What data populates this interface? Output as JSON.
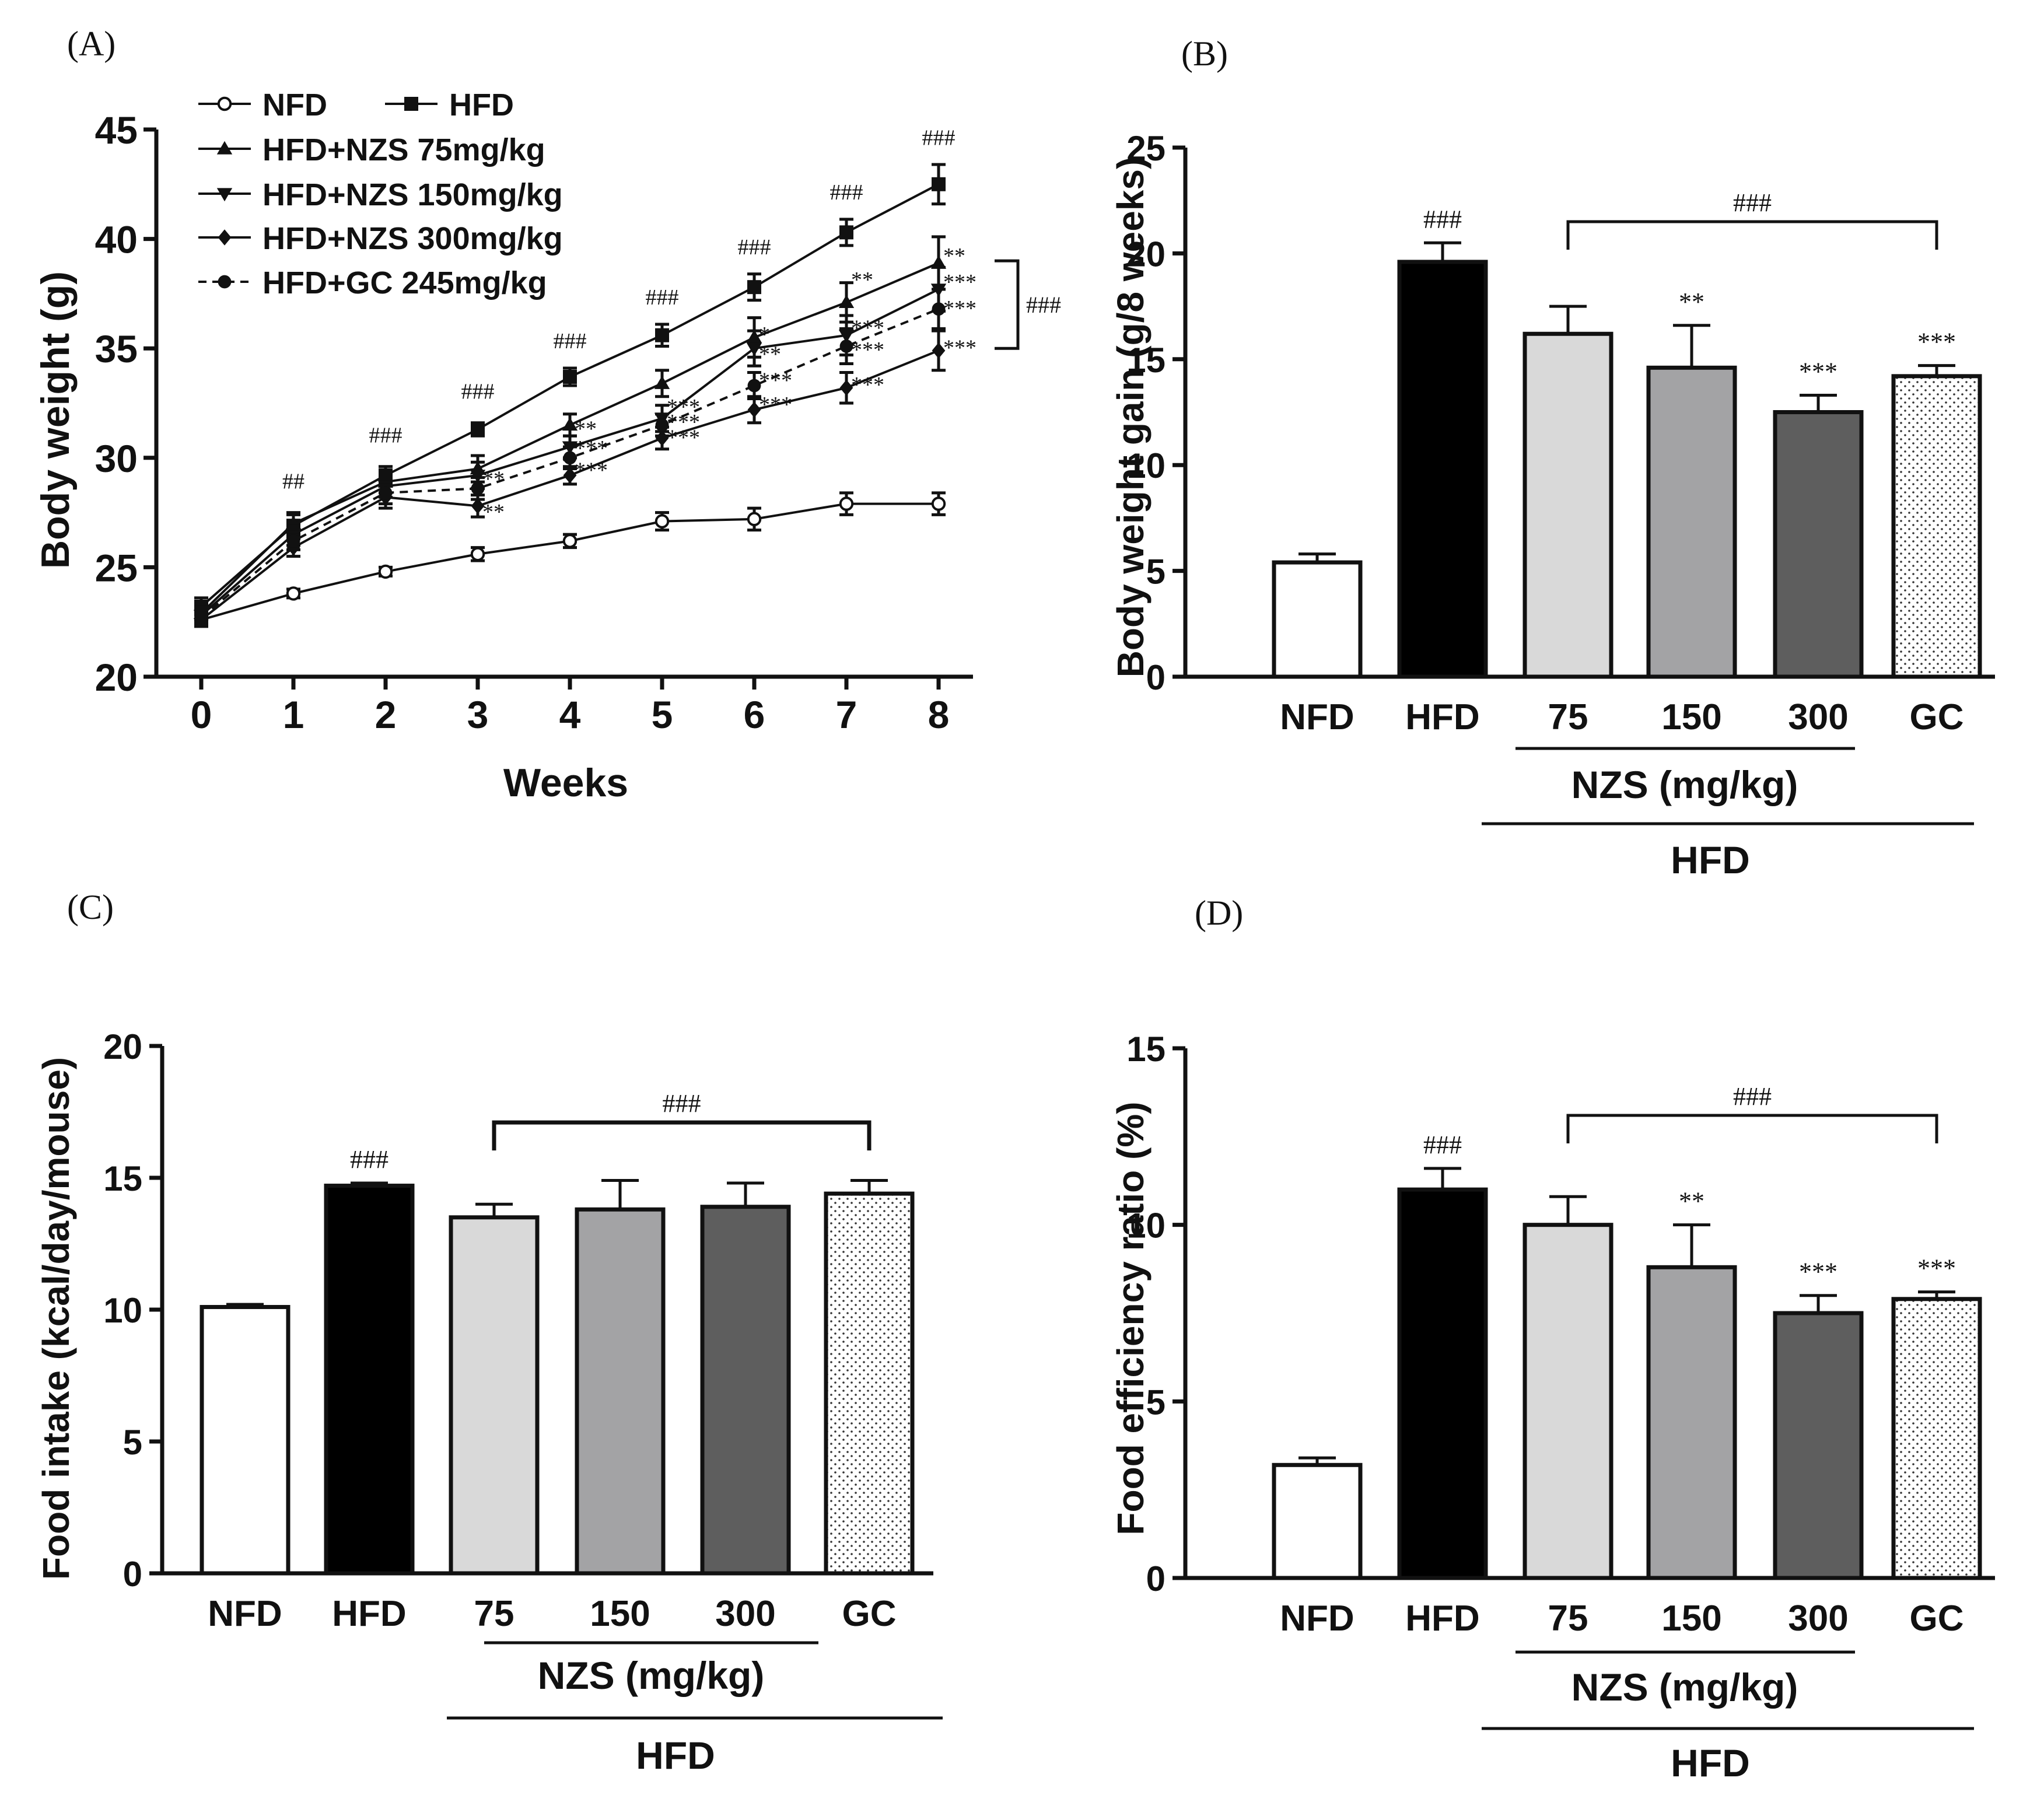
{
  "chart_data": [
    {
      "panel": "(A)",
      "type": "line",
      "xlabel": "Weeks",
      "ylabel": "Body weight (g)",
      "ylim": [
        20,
        45
      ],
      "xlim": [
        0,
        8
      ],
      "yticks": [
        "20",
        "25",
        "30",
        "35",
        "40",
        "45"
      ],
      "x": [
        0,
        1,
        2,
        3,
        4,
        5,
        6,
        7,
        8
      ],
      "series": [
        {
          "name": "NFD",
          "marker": "circle-open",
          "dash": "solid",
          "values": [
            22.6,
            23.8,
            24.8,
            25.6,
            26.2,
            27.1,
            27.2,
            27.9,
            27.9
          ],
          "errors": [
            0.3,
            0.2,
            0.2,
            0.3,
            0.3,
            0.4,
            0.5,
            0.5,
            0.5
          ]
        },
        {
          "name": "HFD",
          "marker": "square",
          "dash": "solid",
          "values": [
            23.2,
            26.9,
            29.2,
            31.3,
            33.7,
            35.6,
            37.8,
            40.3,
            42.5
          ],
          "errors": [
            0.4,
            0.5,
            0.4,
            0.3,
            0.4,
            0.5,
            0.6,
            0.6,
            0.9
          ]
        },
        {
          "name": "HFD+NZS 75mg/kg",
          "marker": "triangle-up",
          "dash": "solid",
          "values": [
            22.9,
            27.0,
            28.9,
            29.5,
            31.5,
            33.4,
            35.5,
            37.1,
            38.9
          ],
          "errors": [
            0.4,
            0.5,
            0.5,
            0.6,
            0.5,
            0.6,
            0.9,
            0.9,
            1.2
          ]
        },
        {
          "name": "HFD+NZS 150mg/kg",
          "marker": "triangle-down",
          "dash": "solid",
          "values": [
            22.8,
            26.5,
            28.7,
            29.2,
            30.5,
            31.8,
            35.0,
            35.6,
            37.7
          ],
          "errors": [
            0.4,
            0.5,
            0.5,
            0.6,
            0.5,
            0.6,
            0.8,
            0.9,
            1.0
          ]
        },
        {
          "name": "HFD+NZS 300mg/kg",
          "marker": "diamond",
          "dash": "solid",
          "values": [
            22.6,
            25.9,
            28.2,
            27.8,
            29.2,
            30.9,
            32.2,
            33.2,
            34.9
          ],
          "errors": [
            0.3,
            0.4,
            0.5,
            0.5,
            0.4,
            0.5,
            0.6,
            0.7,
            0.9
          ]
        },
        {
          "name": "HFD+GC 245mg/kg",
          "marker": "circle",
          "dash": "dashed",
          "values": [
            22.7,
            26.2,
            28.4,
            28.6,
            30.0,
            31.5,
            33.3,
            35.1,
            36.8
          ],
          "errors": [
            0.3,
            0.4,
            0.5,
            0.5,
            0.5,
            0.5,
            0.6,
            0.8,
            0.9
          ]
        }
      ],
      "annotations": [
        {
          "text": "##",
          "x": 1,
          "y": 28.6
        },
        {
          "text": "###",
          "x": 2,
          "y": 30.7
        },
        {
          "text": "###",
          "x": 3,
          "y": 32.7
        },
        {
          "text": "###",
          "x": 4,
          "y": 35.0
        },
        {
          "text": "###",
          "x": 5,
          "y": 37.0
        },
        {
          "text": "###",
          "x": 6,
          "y": 39.3
        },
        {
          "text": "###",
          "x": 7,
          "y": 41.8
        },
        {
          "text": "###",
          "x": 8,
          "y": 44.3
        },
        {
          "text": "**",
          "x": 3,
          "y": 28.7
        },
        {
          "text": "**",
          "x": 3,
          "y": 27.2
        },
        {
          "text": "**",
          "x": 4,
          "y": 31.0
        },
        {
          "text": "***",
          "x": 4,
          "y": 30.1
        },
        {
          "text": "***",
          "x": 4,
          "y": 29.1
        },
        {
          "text": "***",
          "x": 5,
          "y": 32.0
        },
        {
          "text": "***",
          "x": 5,
          "y": 31.3
        },
        {
          "text": "***",
          "x": 5,
          "y": 30.6
        },
        {
          "text": "*",
          "x": 6,
          "y": 35.3
        },
        {
          "text": "**",
          "x": 6,
          "y": 34.4
        },
        {
          "text": "***",
          "x": 6,
          "y": 33.2
        },
        {
          "text": "***",
          "x": 6,
          "y": 32.1
        },
        {
          "text": "**",
          "x": 7,
          "y": 37.8
        },
        {
          "text": "***",
          "x": 7,
          "y": 35.6
        },
        {
          "text": "***",
          "x": 7,
          "y": 34.6
        },
        {
          "text": "***",
          "x": 7,
          "y": 33.0
        },
        {
          "text": "**",
          "x": 8,
          "y": 38.9
        },
        {
          "text": "***",
          "x": 8,
          "y": 37.7
        },
        {
          "text": "***",
          "x": 8,
          "y": 36.5
        },
        {
          "text": "***",
          "x": 8,
          "y": 34.7
        }
      ],
      "bracket": {
        "label": "###",
        "y_top": 39.0,
        "y_bottom": 35.0
      }
    },
    {
      "panel": "(B)",
      "type": "bar",
      "ylabel": "Body weight gain  (g/8 weeks)",
      "ylim": [
        0,
        25
      ],
      "yticks": [
        "0",
        "5",
        "10",
        "15",
        "20",
        "25"
      ],
      "categories": [
        "NFD",
        "HFD",
        "75",
        "150",
        "300",
        "GC"
      ],
      "values": [
        5.4,
        19.6,
        16.2,
        14.6,
        12.5,
        14.2
      ],
      "errors": [
        0.4,
        0.9,
        1.3,
        2.0,
        0.8,
        0.5
      ],
      "fills": [
        "#ffffff",
        "#000000",
        "#d9d9d9",
        "#a3a3a5",
        "#5e5e5e",
        "dots"
      ],
      "labels": [
        "",
        "###",
        "",
        "**",
        "***",
        "***"
      ],
      "bracket": {
        "label": "###",
        "from": 2,
        "to": 5,
        "y": 21.5
      },
      "group_label": "NZS (mg/kg)",
      "group2_label": "HFD"
    },
    {
      "panel": "(C)",
      "type": "bar",
      "ylabel": "Food intake (kcal/day/mouse)",
      "ylim": [
        0,
        20
      ],
      "yticks": [
        "0",
        "5",
        "10",
        "15",
        "20"
      ],
      "categories": [
        "NFD",
        "HFD",
        "75",
        "150",
        "300",
        "GC"
      ],
      "values": [
        10.1,
        14.7,
        13.5,
        13.8,
        13.9,
        14.4
      ],
      "errors": [
        0.1,
        0.1,
        0.5,
        1.1,
        0.9,
        0.5
      ],
      "fills": [
        "#ffffff",
        "#000000",
        "#d9d9d9",
        "#a3a3a5",
        "#5e5e5e",
        "dots"
      ],
      "labels": [
        "",
        "###",
        "",
        "",
        "",
        ""
      ],
      "bracket": {
        "label": "###",
        "from": 2,
        "to": 5,
        "y": 17.1
      },
      "group_label": "NZS (mg/kg)",
      "group2_label": "HFD"
    },
    {
      "panel": "(D)",
      "type": "bar",
      "ylabel": "Food efficiency ratio (%)",
      "ylim": [
        0,
        15
      ],
      "yticks": [
        "0",
        "5",
        "10",
        "15"
      ],
      "categories": [
        "NFD",
        "HFD",
        "75",
        "150",
        "300",
        "GC"
      ],
      "values": [
        3.2,
        11.0,
        10.0,
        8.8,
        7.5,
        7.9
      ],
      "errors": [
        0.2,
        0.6,
        0.8,
        1.2,
        0.5,
        0.2
      ],
      "fills": [
        "#ffffff",
        "#000000",
        "#d9d9d9",
        "#a3a3a5",
        "#5e5e5e",
        "dots"
      ],
      "labels": [
        "",
        "###",
        "",
        "**",
        "***",
        "***"
      ],
      "bracket": {
        "label": "###",
        "from": 2,
        "to": 5,
        "y": 13.1
      },
      "group_label": "NZS (mg/kg)",
      "group2_label": "HFD"
    }
  ]
}
